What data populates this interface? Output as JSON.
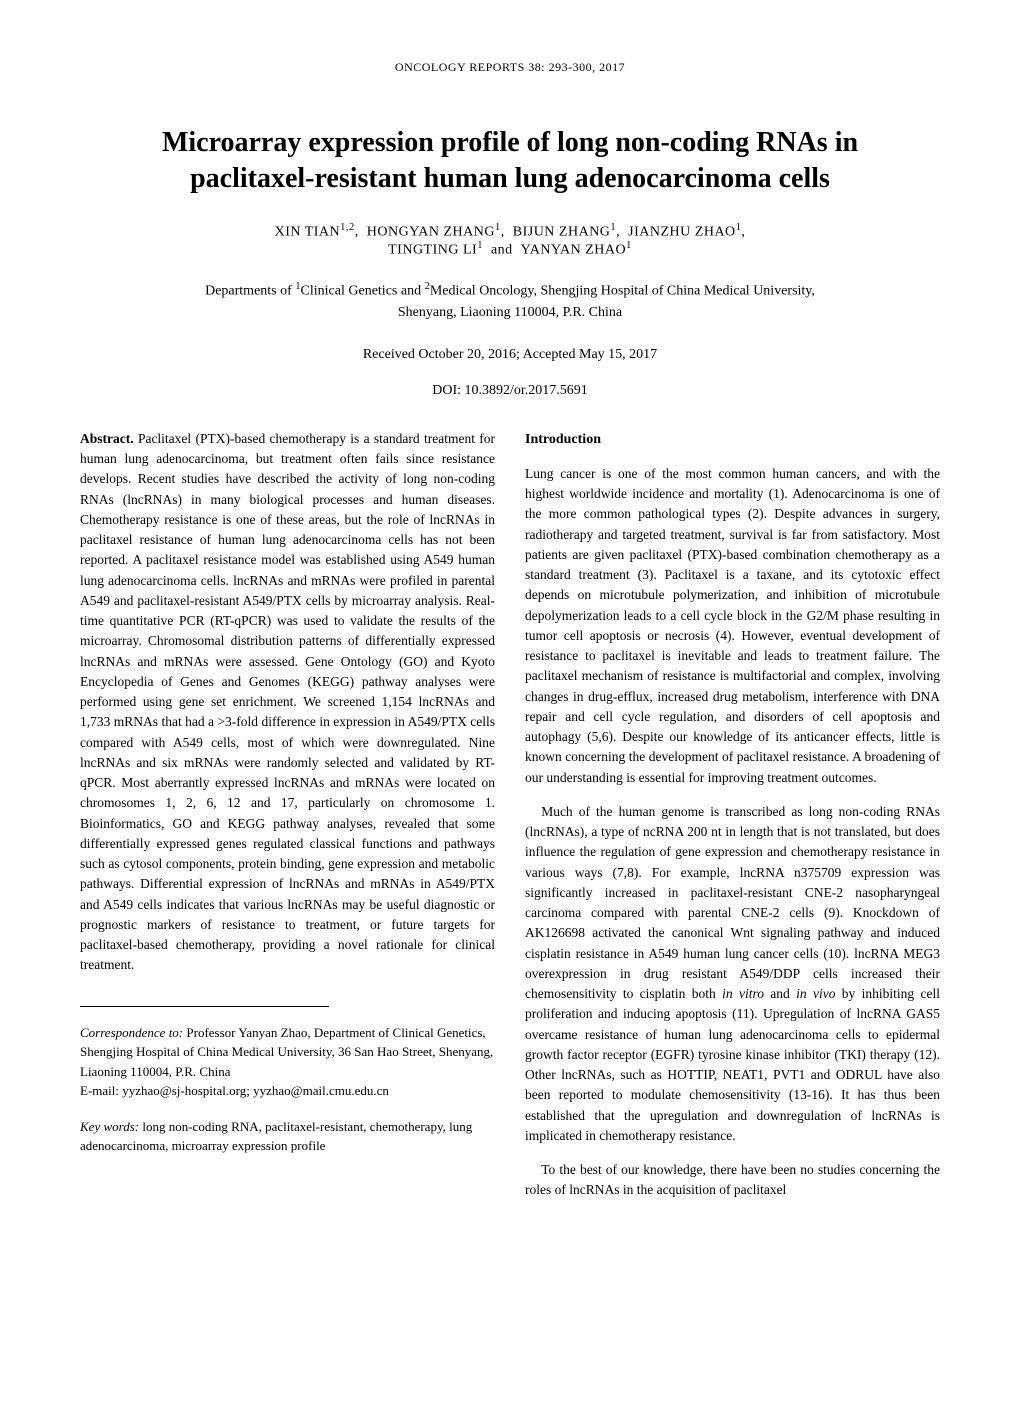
{
  "journal_header": "ONCOLOGY REPORTS 38: 293-300, 2017",
  "page_number": "293",
  "title_line1": "Microarray expression profile of long non-coding RNAs in",
  "title_line2": "paclitaxel-resistant human lung adenocarcinoma cells",
  "authors_html": "XIN TIAN<sup>1,2</sup>,&nbsp;&nbsp;HONGYAN ZHANG<sup>1</sup>,&nbsp;&nbsp;BIJUN ZHANG<sup>1</sup>,&nbsp;&nbsp;JIANZHU ZHAO<sup>1</sup>,<br>TINGTING LI<sup>1</sup>&nbsp;&nbsp;and&nbsp;&nbsp;YANYAN ZHAO<sup>1</sup>",
  "affiliations_html": "Departments of <sup>1</sup>Clinical Genetics and <sup>2</sup>Medical Oncology, Shengjing Hospital of China Medical University,<br>Shenyang, Liaoning 110004, P.R. China",
  "dates": "Received October 20, 2016;  Accepted May 15, 2017",
  "doi": "DOI: 10.3892/or.2017.5691",
  "abstract": {
    "label": "Abstract.",
    "text": " Paclitaxel (PTX)-based chemotherapy is a standard treatment for human lung adenocarcinoma, but treatment often fails since resistance develops. Recent studies have described the activity of long non-coding RNAs (lncRNAs) in many biological processes and human diseases. Chemotherapy resistance is one of these areas, but the role of lncRNAs in paclitaxel resistance of human lung adenocarcinoma cells has not been reported. A paclitaxel resistance model was established using A549 human lung adenocarcinoma cells. lncRNAs and mRNAs were profiled in parental A549 and paclitaxel-resistant A549/PTX cells by microarray analysis. Real-time quantitative PCR (RT-qPCR) was used to validate the results of the microarray. Chromosomal distribution patterns of differentially expressed lncRNAs and mRNAs were assessed. Gene Ontology (GO) and Kyoto Encyclopedia of Genes and Genomes (KEGG) pathway analyses were performed using gene set enrichment. We screened 1,154 lncRNAs and 1,733 mRNAs that had a >3-fold difference in expression in A549/PTX cells compared with A549 cells, most of which were downregulated. Nine lncRNAs and six mRNAs were randomly selected and validated by RT-qPCR. Most aberrantly expressed lncRNAs and mRNAs were located on chromosomes 1, 2, 6, 12 and 17, particularly on chromosome 1. Bioinformatics, GO and KEGG pathway analyses, revealed that some differentially expressed genes regulated classical functions and pathways such as cytosol components, protein binding, gene expression and metabolic pathways. Differential expression of lncRNAs and mRNAs in A549/PTX and A549 cells indicates that various lncRNAs may be useful diagnostic or prognostic markers of resistance to treatment, or future targets for paclitaxel-based chemotherapy, providing a novel rationale for clinical treatment."
  },
  "correspondence": {
    "label": "Correspondence to:",
    "text": " Professor Yanyan Zhao, Department of Clinical Genetics, Shengjing Hospital of China Medical University, 36 San Hao Street, Shenyang, Liaoning 110004, P.R. China",
    "email": "E-mail: yyzhao@sj-hospital.org; yyzhao@mail.cmu.edu.cn"
  },
  "keywords": {
    "label": "Key words:",
    "text": " long non-coding RNA, paclitaxel-resistant, chemotherapy, lung adenocarcinoma, microarray expression profile"
  },
  "introduction": {
    "heading": "Introduction",
    "p1": "Lung cancer is one of the most common human cancers, and with the highest worldwide incidence and mortality (1). Adenocarcinoma is one of the more common pathological types (2). Despite advances in surgery, radiotherapy and targeted treatment, survival is far from satisfactory. Most patients are given paclitaxel (PTX)-based combination chemotherapy as a standard treatment (3). Paclitaxel is a taxane, and its cytotoxic effect depends on microtubule polymerization, and inhibition of microtubule depolymerization leads to a cell cycle block in the G2/M phase resulting in tumor cell apoptosis or necrosis (4). However, eventual development of resistance to paclitaxel is inevitable and leads to treatment failure. The paclitaxel mechanism of resistance is multifactorial and complex, involving changes in drug-efflux, increased drug metabolism, interference with DNA repair and cell cycle regulation, and disorders of cell apoptosis and autophagy (5,6). Despite our knowledge of its anticancer effects, little is known concerning the development of paclitaxel resistance. A broadening of our understanding is essential for improving treatment outcomes.",
    "p2_html": "Much of the human genome is transcribed as long non-coding RNAs (lncRNAs), a type of ncRNA 200 nt in length that is not translated, but does influence the regulation of gene expression and chemotherapy resistance in various ways (7,8). For example, lncRNA n375709 expression was significantly increased in paclitaxel-resistant CNE-2 nasopharyngeal carcinoma compared with parental CNE-2 cells (9). Knockdown of AK126698 activated the canonical Wnt signaling pathway and induced cisplatin resistance in A549 human lung cancer cells (10). lncRNA MEG3 overexpression in drug resistant A549/DDP cells increased their chemosensitivity to cisplatin both <span class=\"italic\">in vitro</span> and <span class=\"italic\">in vivo</span> by inhibiting cell proliferation and inducing apoptosis (11). Upregulation of lncRNA GAS5 overcame resistance of human lung adenocarcinoma cells to epidermal growth factor receptor (EGFR) tyrosine kinase inhibitor (TKI) therapy (12). Other lncRNAs, such as HOTTIP, NEAT1, PVT1 and ODRUL have also been reported to modulate chemosensitivity (13-16). It has thus been established that the upregulation and downregulation of lncRNAs is implicated in chemotherapy resistance.",
    "p3": "To the best of our knowledge, there have been no studies concerning the roles of lncRNAs in the acquisition of paclitaxel"
  }
}
